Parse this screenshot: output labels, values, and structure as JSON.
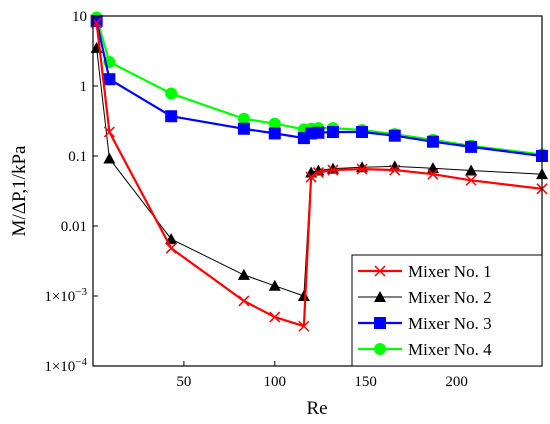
{
  "chart_data": {
    "type": "line",
    "xlabel": "Re",
    "ylabel": "M/ΔP,1/kPa",
    "xlim": [
      0,
      247
    ],
    "ylim": [
      0.0001,
      10
    ],
    "yscale": "log",
    "grid": false,
    "legend_position": "bottom-right",
    "x_ticks": [
      50,
      100,
      150,
      200
    ],
    "x_tick_labels": [
      "50",
      "100",
      "150",
      "200"
    ],
    "y_ticks": [
      0.0001,
      0.001,
      0.01,
      0.1,
      1,
      10
    ],
    "y_tick_labels": [
      {
        "main": "1×10",
        "exp": "−4"
      },
      {
        "main": "1×10",
        "exp": "−3"
      },
      {
        "main": "0.01",
        "exp": ""
      },
      {
        "main": "0.1",
        "exp": ""
      },
      {
        "main": "1",
        "exp": ""
      },
      {
        "main": "10",
        "exp": ""
      }
    ],
    "series": [
      {
        "name": "Mixer No. 1",
        "color": "#ff0000",
        "marker": "x",
        "x": [
          2,
          9,
          43,
          83,
          100,
          116,
          120,
          124,
          132,
          148,
          166,
          187,
          208,
          247
        ],
        "y": [
          8,
          0.22,
          0.0048,
          0.00085,
          0.0005,
          0.00037,
          0.05,
          0.058,
          0.063,
          0.065,
          0.063,
          0.055,
          0.045,
          0.034
        ]
      },
      {
        "name": "Mixer No. 2",
        "color": "#000000",
        "marker": "triangle",
        "x": [
          2,
          9,
          43,
          83,
          100,
          116,
          120,
          124,
          132,
          148,
          166,
          187,
          208,
          247
        ],
        "y": [
          3.5,
          0.092,
          0.0065,
          0.002,
          0.0014,
          0.001,
          0.058,
          0.062,
          0.066,
          0.069,
          0.071,
          0.067,
          0.062,
          0.055
        ]
      },
      {
        "name": "Mixer No. 3",
        "color": "#0000ff",
        "marker": "square",
        "x": [
          2,
          9,
          43,
          83,
          100,
          116,
          120,
          124,
          132,
          148,
          166,
          187,
          208,
          247
        ],
        "y": [
          8.5,
          1.25,
          0.37,
          0.245,
          0.21,
          0.18,
          0.21,
          0.215,
          0.22,
          0.22,
          0.195,
          0.16,
          0.135,
          0.1
        ]
      },
      {
        "name": "Mixer No. 4",
        "color": "#00ff00",
        "marker": "circle",
        "x": [
          2,
          9,
          43,
          83,
          100,
          116,
          120,
          124,
          132,
          148,
          166,
          187,
          208,
          247
        ],
        "y": [
          9.5,
          2.2,
          0.78,
          0.34,
          0.29,
          0.24,
          0.245,
          0.25,
          0.25,
          0.235,
          0.205,
          0.17,
          0.14,
          0.105
        ]
      }
    ]
  }
}
